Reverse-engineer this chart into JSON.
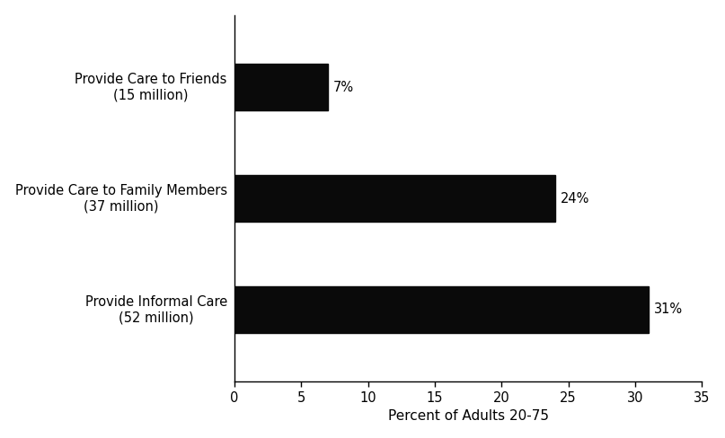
{
  "categories": [
    "Provide Care to Friends\n(15 million)",
    "Provide Care to Family Members\n(37 million)",
    "Provide Informal Care\n(52 million)"
  ],
  "values": [
    7,
    24,
    31
  ],
  "bar_color": "#0a0a0a",
  "bar_labels": [
    "7%",
    "24%",
    "31%"
  ],
  "xlabel": "Percent of Adults 20-75",
  "xlim": [
    0,
    35
  ],
  "xticks": [
    0,
    5,
    10,
    15,
    20,
    25,
    30,
    35
  ],
  "background_color": "#ffffff",
  "bar_height": 0.42,
  "label_fontsize": 10.5,
  "xlabel_fontsize": 11,
  "tick_fontsize": 10.5,
  "figsize": [
    8.07,
    4.88
  ],
  "dpi": 100
}
